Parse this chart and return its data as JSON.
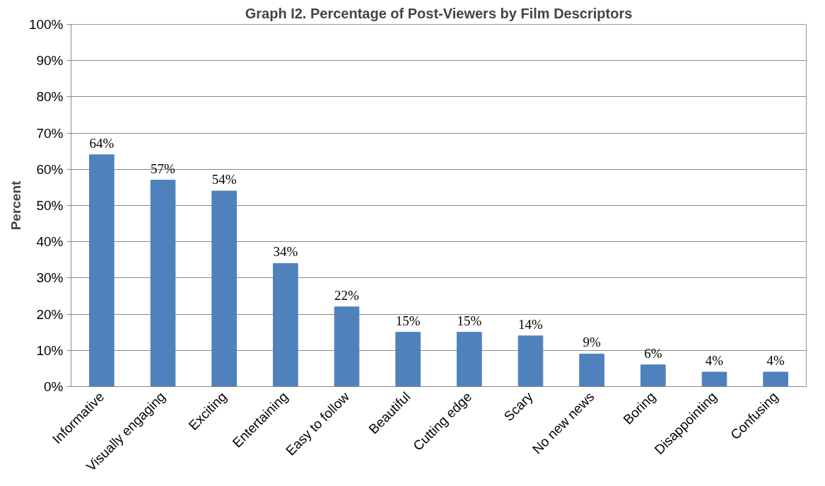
{
  "chart_data": {
    "type": "bar",
    "title": "Graph I2. Percentage of Post-Viewers by Film Descriptors",
    "ylabel": "Percent",
    "categories": [
      "Informative",
      "Visually engaging",
      "Exciting",
      "Entertaining",
      "Easy to follow",
      "Beautiful",
      "Cutting edge",
      "Scary",
      "No new news",
      "Boring",
      "Disappointing",
      "Confusing"
    ],
    "values": [
      64,
      57,
      54,
      34,
      22,
      15,
      15,
      14,
      9,
      6,
      4,
      4
    ],
    "value_labels": [
      "64%",
      "57%",
      "54%",
      "34%",
      "22%",
      "15%",
      "15%",
      "14%",
      "9%",
      "6%",
      "4%",
      "4%"
    ],
    "color": "#4f81bd",
    "ylim": [
      0,
      100
    ],
    "yticks": [
      {
        "value": 0,
        "label": "0%"
      },
      {
        "value": 10,
        "label": "10%"
      },
      {
        "value": 20,
        "label": "20%"
      },
      {
        "value": 30,
        "label": "30%"
      },
      {
        "value": 40,
        "label": "40%"
      },
      {
        "value": 50,
        "label": "50%"
      },
      {
        "value": 60,
        "label": "60%"
      },
      {
        "value": 70,
        "label": "70%"
      },
      {
        "value": 80,
        "label": "80%"
      },
      {
        "value": 90,
        "label": "90%"
      },
      {
        "value": 100,
        "label": "100%"
      }
    ],
    "grid": "y"
  }
}
